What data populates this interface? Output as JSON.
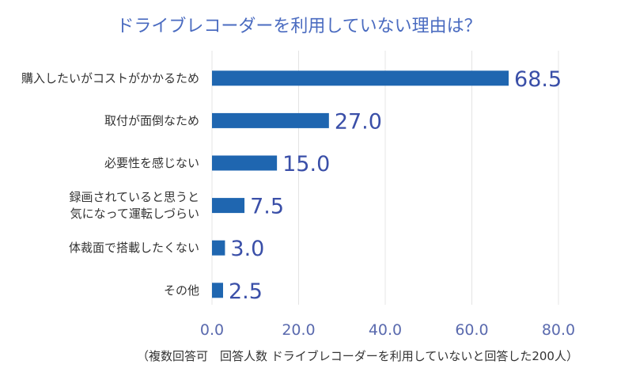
{
  "chart_data": {
    "type": "bar",
    "orientation": "horizontal",
    "title": "ドライブレコーダーを利用していない理由は？",
    "categories": [
      [
        "購入したいがコストがかかるため"
      ],
      [
        "取付が面倒なため"
      ],
      [
        "必要性を感じない"
      ],
      [
        "録画されていると思うと",
        "気になって運転しづらい"
      ],
      [
        "体裁面で搭載したくない"
      ],
      [
        "その他"
      ]
    ],
    "values": [
      68.5,
      27.0,
      15.0,
      7.5,
      3.0,
      2.5
    ],
    "value_labels": [
      "68.5",
      "27.0",
      "15.0",
      "7.5",
      "3.0",
      "2.5"
    ],
    "xlim": [
      0,
      80
    ],
    "xticks": [
      0,
      20,
      40,
      60,
      80
    ],
    "xtick_labels": [
      "0.0",
      "20.0",
      "40.0",
      "60.0",
      "80.0"
    ],
    "xlabel": "",
    "ylabel": "",
    "grid": true,
    "legend": "none",
    "footnote": "（複数回答可　回答人数 ドライブレコーダーを利用していないと回答した200人）",
    "colors": {
      "bar": "#1F66B0",
      "value_label": "#3A4FA8",
      "title": "#4A6BC0",
      "tick_label": "#5A6AAE",
      "category_label": "#333333",
      "grid": "#E4E4E4"
    }
  }
}
